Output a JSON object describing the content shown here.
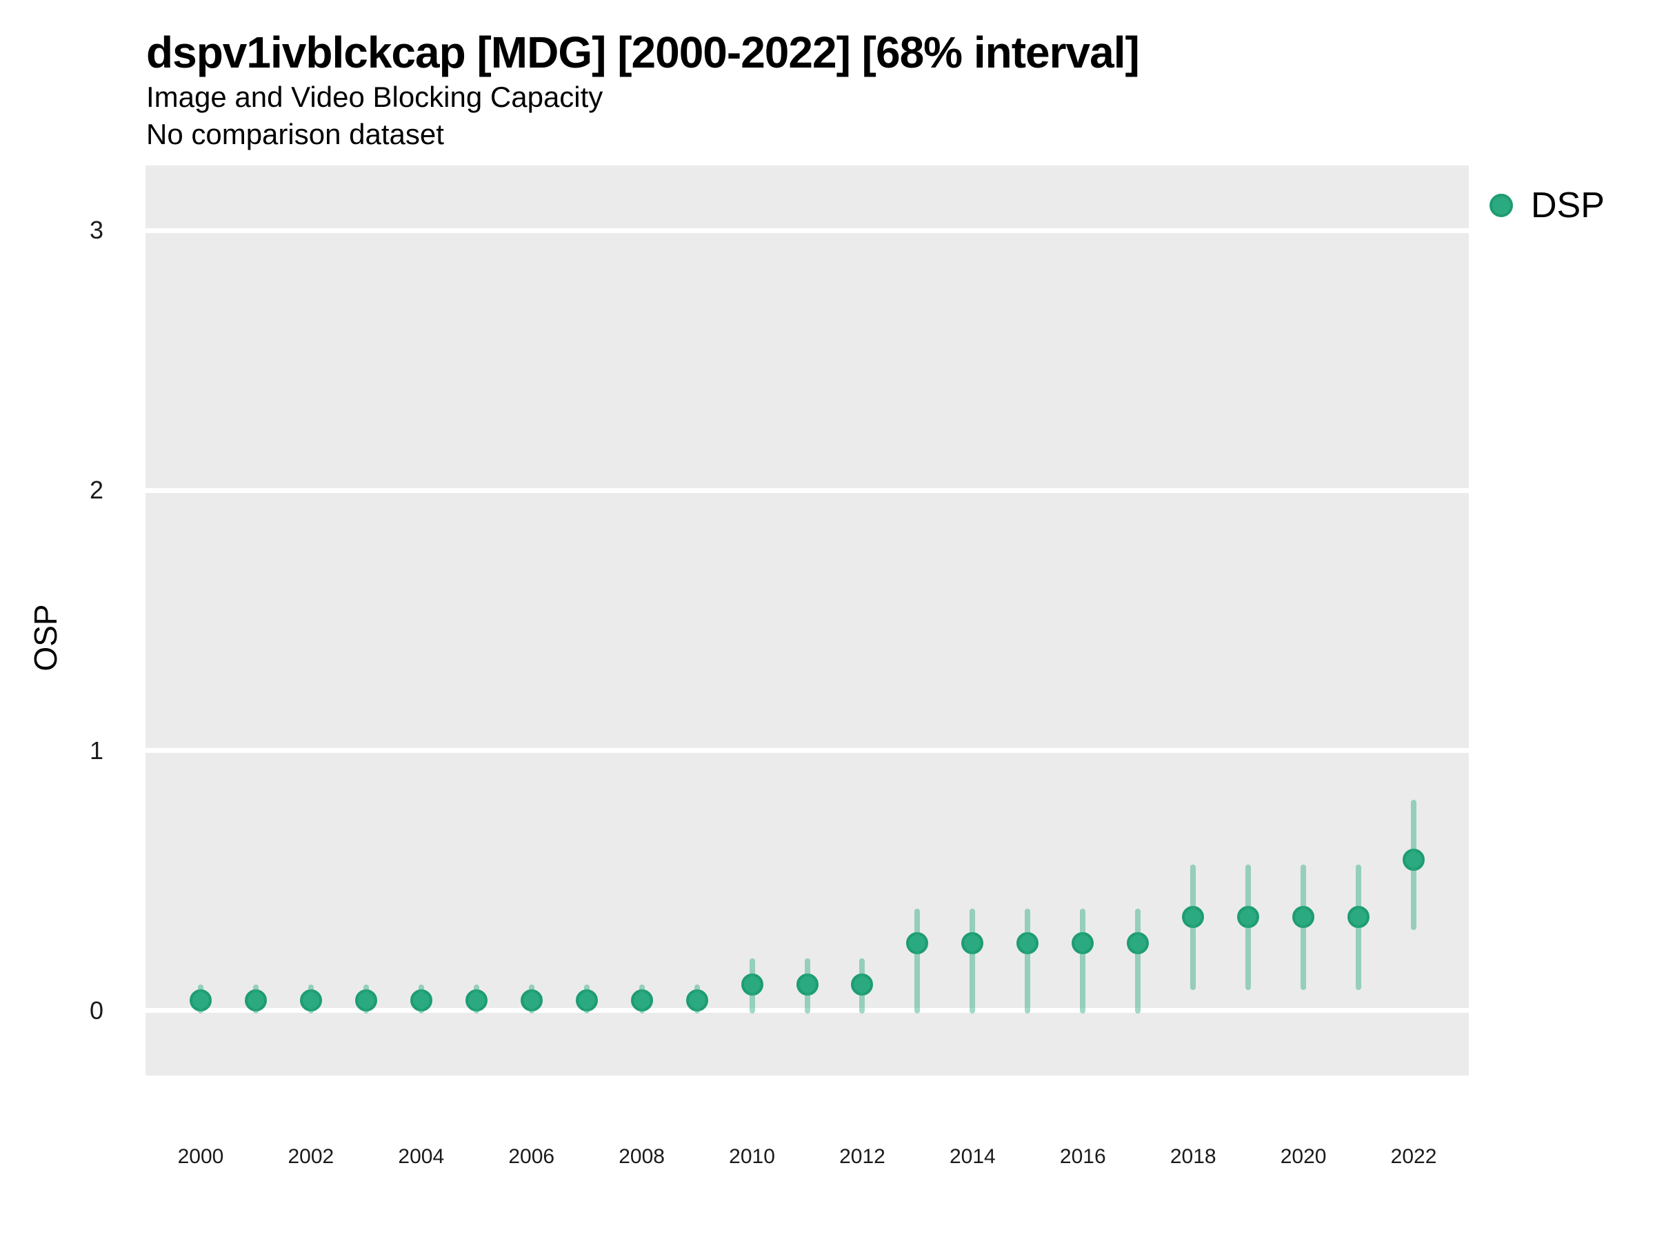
{
  "header": {
    "title": "dspv1ivblckcap [MDG] [2000-2022] [68% interval]",
    "subtitle": "Image and Video Blocking Capacity",
    "comparison_note": "No comparison dataset"
  },
  "legend": {
    "label": "DSP",
    "color": "#2BAA81"
  },
  "axes": {
    "y_label": "OSP",
    "y_ticks": [
      0,
      1,
      2,
      3
    ],
    "x_ticks": [
      2000,
      2002,
      2004,
      2006,
      2008,
      2010,
      2012,
      2014,
      2016,
      2018,
      2020,
      2022
    ]
  },
  "colors": {
    "point_fill": "#2BAA81",
    "point_stroke": "#1E9C72",
    "interval_bar": "rgba(44,170,129,0.45)",
    "panel_background": "#EBEBEB",
    "grid_color": "#FFFFFF"
  },
  "chart_data": {
    "type": "scatter",
    "title": "dspv1ivblckcap [MDG] [2000-2022] [68% interval]",
    "subtitle": "Image and Video Blocking Capacity",
    "note": "No comparison dataset",
    "xlabel": "",
    "ylabel": "OSP",
    "interval": "68%",
    "legend_position": "right-top",
    "grid": "major-y-only",
    "xlim": [
      1999,
      2023
    ],
    "ylim": [
      -0.25,
      3.25
    ],
    "x": [
      2000,
      2001,
      2002,
      2003,
      2004,
      2005,
      2006,
      2007,
      2008,
      2009,
      2010,
      2011,
      2012,
      2013,
      2014,
      2015,
      2016,
      2017,
      2018,
      2019,
      2020,
      2021,
      2022
    ],
    "series": [
      {
        "name": "DSP",
        "values": [
          0.04,
          0.04,
          0.04,
          0.04,
          0.04,
          0.04,
          0.04,
          0.04,
          0.04,
          0.04,
          0.1,
          0.1,
          0.1,
          0.26,
          0.26,
          0.26,
          0.26,
          0.26,
          0.36,
          0.36,
          0.36,
          0.36,
          0.58
        ],
        "lower_68": [
          0.0,
          0.0,
          0.0,
          0.0,
          0.0,
          0.0,
          0.0,
          0.0,
          0.0,
          0.0,
          0.0,
          0.0,
          0.0,
          0.0,
          0.0,
          0.0,
          0.0,
          0.0,
          0.09,
          0.09,
          0.09,
          0.09,
          0.32
        ],
        "upper_68": [
          0.09,
          0.09,
          0.09,
          0.09,
          0.09,
          0.09,
          0.09,
          0.09,
          0.09,
          0.09,
          0.19,
          0.19,
          0.19,
          0.38,
          0.38,
          0.38,
          0.38,
          0.38,
          0.55,
          0.55,
          0.55,
          0.55,
          0.8
        ]
      }
    ]
  }
}
